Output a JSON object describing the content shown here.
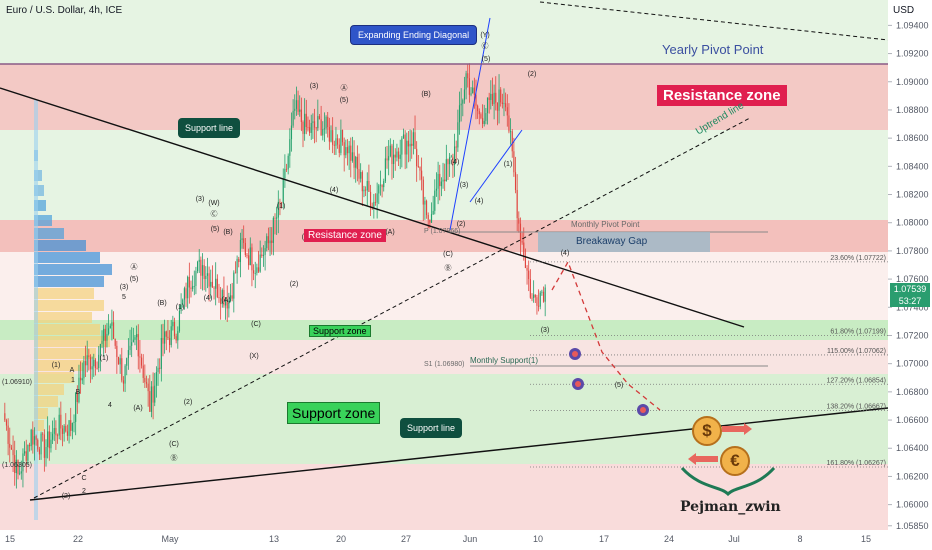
{
  "header": {
    "title": "Euro / U.S. Dollar, 4h, ICE",
    "currency": "USD"
  },
  "price_tag": {
    "price": "1.07539",
    "countdown": "53:27"
  },
  "labels": {
    "expanding": "Expanding Ending Diagonal",
    "yearly_pivot": "Yearly Pivot Point",
    "resistance_zone_big": "Resistance zone",
    "resistance_zone_small": "Resistance zone",
    "support_line_top": "Support line",
    "support_line_bottom": "Support line",
    "uptrend_line": "Uptrend line",
    "monthly_pivot": "Monthly Pivot Point",
    "breakaway_gap": "Breakaway Gap",
    "support_zone_small": "Support zone",
    "support_zone_big": "Support zone",
    "monthly_support": "Monthly Support(1)",
    "s1_label": "S1 (1.06980)",
    "p_label": "P (1.07966)",
    "left_label_1": "(1.06910)",
    "left_label_2": "(1.06305)",
    "brand": "Pejman_zwin",
    "dollar_sign": "$",
    "euro_sign": "€"
  },
  "fib_levels": [
    {
      "label": "23.60% (1.07722)",
      "price": 1.07722
    },
    {
      "label": "61.80% (1.07199)",
      "price": 1.07199
    },
    {
      "label": "115.00% (1.07062)",
      "price": 1.07062
    },
    {
      "label": "127.20% (1.06854)",
      "price": 1.06854
    },
    {
      "label": "138.20% (1.06667)",
      "price": 1.06667
    },
    {
      "label": "161.80% (1.06267)",
      "price": 1.06267
    }
  ],
  "chart_data": {
    "type": "candlestick",
    "title": "Euro / U.S. Dollar, 4h, ICE",
    "ylabel": "USD",
    "ylim": [
      1.0582,
      1.0958
    ],
    "y_ticks": [
      "1.09400",
      "1.09200",
      "1.09000",
      "1.08800",
      "1.08600",
      "1.08400",
      "1.08200",
      "1.08000",
      "1.07800",
      "1.07600",
      "1.07400",
      "1.07200",
      "1.07000",
      "1.06800",
      "1.06600",
      "1.06400",
      "1.06200",
      "1.06000",
      "1.05850"
    ],
    "x_ticks": [
      "15",
      "22",
      "May",
      "13",
      "20",
      "27",
      "Jun",
      "10",
      "17",
      "24",
      "Jul",
      "8",
      "15"
    ],
    "close_path": [
      [
        "Apr 15",
        1.066
      ],
      [
        "Apr 16",
        1.062
      ],
      [
        "Apr 17",
        1.065
      ],
      [
        "Apr 18",
        1.064
      ],
      [
        "Apr 19",
        1.0655
      ],
      [
        "Apr 22",
        1.0655
      ],
      [
        "Apr 23",
        1.07
      ],
      [
        "Apr 24",
        1.0705
      ],
      [
        "Apr 25",
        1.0728
      ],
      [
        "Apr 26",
        1.069
      ],
      [
        "Apr 29",
        1.072
      ],
      [
        "Apr 30",
        1.067
      ],
      [
        "May 1",
        1.0715
      ],
      [
        "May 2",
        1.0725
      ],
      [
        "May 3",
        1.076
      ],
      [
        "May 6",
        1.077
      ],
      [
        "May 7",
        1.0755
      ],
      [
        "May 8",
        1.0745
      ],
      [
        "May 9",
        1.0785
      ],
      [
        "May 10",
        1.077
      ],
      [
        "May 13",
        1.0785
      ],
      [
        "May 14",
        1.0815
      ],
      [
        "May 15",
        1.088
      ],
      [
        "May 16",
        1.0865
      ],
      [
        "May 17",
        1.087
      ],
      [
        "May 20",
        1.086
      ],
      [
        "May 21",
        1.0855
      ],
      [
        "May 22",
        1.083
      ],
      [
        "May 23",
        1.0815
      ],
      [
        "May 24",
        1.0845
      ],
      [
        "May 27",
        1.0855
      ],
      [
        "May 28",
        1.086
      ],
      [
        "May 29",
        1.08
      ],
      [
        "May 30",
        1.083
      ],
      [
        "May 31",
        1.0845
      ],
      [
        "Jun 3",
        1.0905
      ],
      [
        "Jun 4",
        1.0875
      ],
      [
        "Jun 5",
        1.0885
      ],
      [
        "Jun 6",
        1.089
      ],
      [
        "Jun 7",
        1.08
      ],
      [
        "Jun 10",
        1.0745
      ],
      [
        "Jun 11",
        1.0754
      ]
    ],
    "zones": [
      {
        "name": "Resistance zone",
        "from": 1.087,
        "to": 1.092
      },
      {
        "name": "Resistance zone",
        "from": 1.0785,
        "to": 1.0806
      },
      {
        "name": "Support zone",
        "from": 1.0714,
        "to": 1.073
      },
      {
        "name": "Support zone",
        "from": 1.0625,
        "to": 1.069
      }
    ],
    "pivots": [
      {
        "name": "Yearly Pivot Point",
        "value": 1.092
      },
      {
        "name": "Monthly Pivot Point",
        "value": 1.07966
      },
      {
        "name": "Monthly Support(1)",
        "value": 1.0698
      }
    ],
    "wave_labels": [
      "(2)",
      "(1)",
      "C",
      "2",
      "A",
      "B",
      "1",
      "(X)",
      "(W)",
      "(3)",
      "(4)",
      "(5)",
      "(A)",
      "(B)",
      "(C)",
      "(Y)",
      "3",
      "4",
      "5",
      "(a)",
      "(b)",
      "(c)"
    ]
  }
}
